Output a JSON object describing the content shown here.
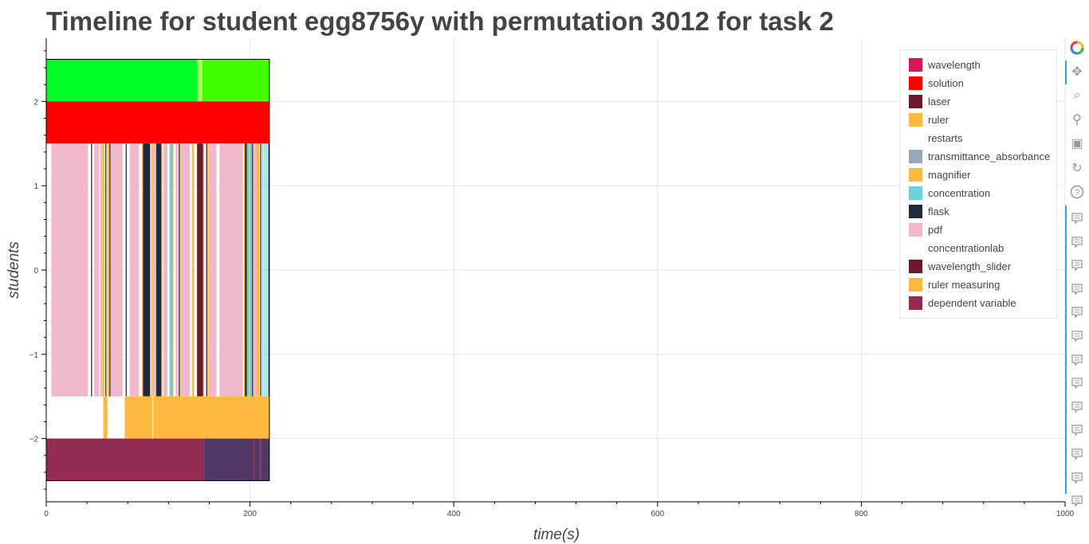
{
  "title": "Timeline for student egg8756y with permutation 3012 for task 2",
  "chart_data": {
    "type": "bar",
    "orientation": "horizontal-timeline",
    "xlabel": "time(s)",
    "ylabel": "students",
    "xlim": [
      0,
      1000
    ],
    "ylim": [
      -2.75,
      2.75
    ],
    "x_ticks": [
      0,
      200,
      400,
      600,
      800,
      1000
    ],
    "y_ticks": [
      -2,
      -1,
      0,
      1,
      2
    ],
    "y_tick_labels": [
      "−2",
      "−1",
      "0",
      "1",
      "2"
    ],
    "grid": true,
    "legend_position": "top-right",
    "legend": [
      {
        "label": "wavelength",
        "color": "#d6185b"
      },
      {
        "label": "solution",
        "color": "#ff0000"
      },
      {
        "label": "laser",
        "color": "#6b1a2e"
      },
      {
        "label": "ruler",
        "color": "#ffb940"
      },
      {
        "label": "restarts",
        "color": "#ffffff"
      },
      {
        "label": "transmittance_absorbance",
        "color": "#9aa7b8"
      },
      {
        "label": "magnifier",
        "color": "#ffb940"
      },
      {
        "label": "concentration",
        "color": "#6fd0d8"
      },
      {
        "label": "flask",
        "color": "#1e2a3e"
      },
      {
        "label": "pdf",
        "color": "#f0b8cb"
      },
      {
        "label": "concentrationlab",
        "color": "#ffffff"
      },
      {
        "label": "wavelength_slider",
        "color": "#6b1a2e"
      },
      {
        "label": "ruler measuring",
        "color": "#ffb940"
      },
      {
        "label": "dependent variable",
        "color": "#932c52"
      }
    ],
    "rows": [
      {
        "y0": 2,
        "y1": 2.5,
        "segments": [
          {
            "start": 0,
            "end": 148,
            "color": "#00ff26"
          },
          {
            "start": 148,
            "end": 150,
            "color": "#88ff55"
          },
          {
            "start": 150,
            "end": 153,
            "color": "#b3ff55"
          },
          {
            "start": 153,
            "end": 219,
            "color": "#44ff00"
          }
        ]
      },
      {
        "y0": 1.5,
        "y1": 2,
        "segments": [
          {
            "start": 0,
            "end": 219,
            "color": "#ff0000"
          }
        ]
      },
      {
        "y0": -1.5,
        "y1": 1.5,
        "segments": [
          {
            "start": 5,
            "end": 41,
            "color": "#f0b8cb"
          },
          {
            "start": 44,
            "end": 45,
            "color": "#1e2a3e"
          },
          {
            "start": 47,
            "end": 52,
            "color": "#f0b8cb"
          },
          {
            "start": 53,
            "end": 55,
            "color": "#f0b8cb"
          },
          {
            "start": 55,
            "end": 57,
            "color": "#ffb940"
          },
          {
            "start": 58,
            "end": 59,
            "color": "#1e2a3e"
          },
          {
            "start": 60,
            "end": 62,
            "color": "#ffb940"
          },
          {
            "start": 62,
            "end": 63,
            "color": "#1e2a3e"
          },
          {
            "start": 63,
            "end": 75,
            "color": "#f0b8cb"
          },
          {
            "start": 78,
            "end": 79,
            "color": "#1e2a3e"
          },
          {
            "start": 82,
            "end": 91,
            "color": "#f0b8cb"
          },
          {
            "start": 94,
            "end": 95,
            "color": "#ffb940"
          },
          {
            "start": 95,
            "end": 102,
            "color": "#1e2a3e"
          },
          {
            "start": 103,
            "end": 104,
            "color": "#ffb940"
          },
          {
            "start": 104,
            "end": 107,
            "color": "#f0b8cb"
          },
          {
            "start": 107,
            "end": 108,
            "color": "#ffb940"
          },
          {
            "start": 108,
            "end": 113,
            "color": "#1e2a3e"
          },
          {
            "start": 113,
            "end": 114,
            "color": "#ffb940"
          },
          {
            "start": 115,
            "end": 119,
            "color": "#f0b8cb"
          },
          {
            "start": 121,
            "end": 124,
            "color": "#6fd0d8"
          },
          {
            "start": 124,
            "end": 125,
            "color": "#ffb940"
          },
          {
            "start": 127,
            "end": 129,
            "color": "#f0b8cb"
          },
          {
            "start": 130,
            "end": 131,
            "color": "#1e2a3e"
          },
          {
            "start": 131,
            "end": 132,
            "color": "#ffb940"
          },
          {
            "start": 132,
            "end": 141,
            "color": "#f0b8cb"
          },
          {
            "start": 143,
            "end": 145,
            "color": "#ffb940"
          },
          {
            "start": 148,
            "end": 154,
            "color": "#6b1a2e"
          },
          {
            "start": 154,
            "end": 155,
            "color": "#ffb940"
          },
          {
            "start": 157,
            "end": 158,
            "color": "#1e2a3e"
          },
          {
            "start": 158,
            "end": 159,
            "color": "#ffb940"
          },
          {
            "start": 159,
            "end": 167,
            "color": "#f0b8cb"
          },
          {
            "start": 170,
            "end": 193,
            "color": "#f0b8cb"
          },
          {
            "start": 194,
            "end": 195,
            "color": "#ffb940"
          },
          {
            "start": 195,
            "end": 197,
            "color": "#1e2a3e"
          },
          {
            "start": 197,
            "end": 199,
            "color": "#6fd0d8"
          },
          {
            "start": 199,
            "end": 200,
            "color": "#ffb940"
          },
          {
            "start": 200,
            "end": 202,
            "color": "#6fd0d8"
          },
          {
            "start": 202,
            "end": 203,
            "color": "#1e2a3e"
          },
          {
            "start": 203,
            "end": 206,
            "color": "#f0b8cb"
          },
          {
            "start": 206,
            "end": 209,
            "color": "#ffb940"
          },
          {
            "start": 210,
            "end": 211,
            "color": "#1e2a3e"
          },
          {
            "start": 212,
            "end": 213,
            "color": "#6fd0d8"
          },
          {
            "start": 214,
            "end": 215,
            "color": "#6fd0d8"
          },
          {
            "start": 216,
            "end": 217,
            "color": "#6fd0d8"
          },
          {
            "start": 218,
            "end": 219,
            "color": "#1e2a3e"
          }
        ]
      },
      {
        "y0": -2,
        "y1": -1.5,
        "segments": [
          {
            "start": 56,
            "end": 60,
            "color": "#ffb940"
          },
          {
            "start": 77,
            "end": 104,
            "color": "#ffb940"
          },
          {
            "start": 105,
            "end": 219,
            "color": "#ffb940"
          }
        ]
      },
      {
        "y0": -2.5,
        "y1": -2,
        "segments": [
          {
            "start": 0,
            "end": 155,
            "color": "#932c52"
          },
          {
            "start": 155,
            "end": 203,
            "color": "#503866"
          },
          {
            "start": 203,
            "end": 205,
            "color": "#7a3060"
          },
          {
            "start": 205,
            "end": 209,
            "color": "#503866"
          },
          {
            "start": 209,
            "end": 211,
            "color": "#7a3060"
          },
          {
            "start": 211,
            "end": 219,
            "color": "#503866"
          }
        ]
      }
    ],
    "outline_box": {
      "x0": 0,
      "x1": 219,
      "y0": -2.5,
      "y1": 2.5
    }
  },
  "toolbar": {
    "tools": [
      {
        "name": "bokeh-logo-icon"
      },
      {
        "name": "pan-icon"
      },
      {
        "name": "box-zoom-icon"
      },
      {
        "name": "wheel-zoom-icon"
      },
      {
        "name": "save-icon"
      },
      {
        "name": "reset-icon"
      },
      {
        "name": "help-icon"
      }
    ],
    "hover_tool_count": 13,
    "more_label": "..."
  }
}
